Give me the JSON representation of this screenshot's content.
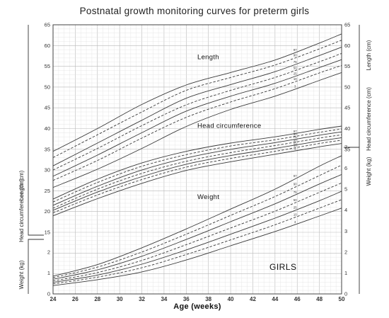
{
  "chart_data": {
    "type": "line",
    "title": "Postnatal growth monitoring curves for preterm girls",
    "xlabel": "Age (weeks)",
    "watermark_label": "GIRLS",
    "x_ticks": [
      24,
      26,
      28,
      30,
      32,
      34,
      36,
      38,
      40,
      42,
      44,
      46,
      48,
      50
    ],
    "xlim": [
      24,
      50
    ],
    "grid": true,
    "axes": {
      "length": {
        "label": "Length (cm)",
        "ylim": [
          15,
          65
        ],
        "ticks": [
          15,
          20,
          25,
          30,
          35,
          40,
          45,
          50,
          55,
          60,
          65
        ]
      },
      "head": {
        "label": "Head circumference (cm)",
        "ylim": [
          15,
          40
        ],
        "ticks": [
          15,
          20,
          25,
          30,
          35,
          40
        ]
      },
      "weight": {
        "label": "Weight (kg)",
        "ylim": [
          0,
          7
        ],
        "ticks_left": [
          0,
          1,
          2
        ],
        "ticks_right": [
          0,
          1,
          2,
          3,
          4,
          5,
          6,
          7
        ]
      }
    },
    "percentile_labels": [
      "97",
      "90",
      "75",
      "50",
      "25",
      "10",
      "3"
    ],
    "panels": [
      {
        "name": "Length",
        "axis": "length",
        "x": [
          24,
          28,
          32,
          36,
          40,
          44,
          48,
          50
        ],
        "series": [
          {
            "name": "97",
            "values": [
              34.5,
              40.0,
              45.8,
              50.5,
              53.5,
              56.5,
              60.6,
              62.8
            ]
          },
          {
            "name": "90",
            "values": [
              33.0,
              38.5,
              44.0,
              49.2,
              52.3,
              55.3,
              59.2,
              61.3
            ]
          },
          {
            "name": "75",
            "values": [
              31.0,
              36.5,
              42.0,
              47.3,
              50.6,
              53.7,
              57.6,
              59.6
            ]
          },
          {
            "name": "50",
            "values": [
              30.0,
              35.2,
              40.7,
              45.7,
              49.2,
              52.3,
              56.1,
              58.1
            ]
          },
          {
            "name": "25",
            "values": [
              28.5,
              33.6,
              39.0,
              44.2,
              47.8,
              50.9,
              54.7,
              56.6
            ]
          },
          {
            "name": "10",
            "values": [
              27.5,
              32.3,
              37.7,
              42.7,
              46.4,
              49.6,
              53.4,
              55.2
            ]
          },
          {
            "name": "3",
            "values": [
              25.8,
              30.2,
              35.2,
              40.5,
              44.6,
              47.8,
              51.6,
              53.5
            ]
          }
        ]
      },
      {
        "name": "Head circumference",
        "axis": "head",
        "x": [
          24,
          28,
          32,
          36,
          40,
          44,
          48,
          50
        ],
        "series": [
          {
            "name": "97",
            "values": [
              23.0,
              27.8,
              31.7,
              34.5,
              36.5,
              38.0,
              39.8,
              40.6
            ]
          },
          {
            "name": "90",
            "values": [
              22.3,
              27.0,
              30.9,
              33.7,
              35.8,
              37.3,
              39.1,
              39.9
            ]
          },
          {
            "name": "75",
            "values": [
              21.5,
              26.1,
              30.0,
              32.9,
              35.0,
              36.6,
              38.4,
              39.2
            ]
          },
          {
            "name": "50",
            "values": [
              20.8,
              25.4,
              29.2,
              32.1,
              34.2,
              35.9,
              37.7,
              38.5
            ]
          },
          {
            "name": "25",
            "values": [
              20.3,
              24.7,
              28.4,
              31.4,
              33.5,
              35.2,
              37.0,
              37.8
            ]
          },
          {
            "name": "10",
            "values": [
              19.7,
              24.0,
              27.7,
              30.7,
              32.8,
              34.5,
              36.4,
              37.2
            ]
          },
          {
            "name": "3",
            "values": [
              19.0,
              23.1,
              26.8,
              29.9,
              32.0,
              33.8,
              35.6,
              36.4
            ]
          }
        ]
      },
      {
        "name": "Weight",
        "axis": "weight",
        "x": [
          24,
          28,
          32,
          36,
          40,
          44,
          48,
          50
        ],
        "series": [
          {
            "name": "97",
            "values": [
              0.85,
              1.4,
              2.2,
              3.1,
              4.05,
              5.0,
              6.1,
              6.6
            ]
          },
          {
            "name": "90",
            "values": [
              0.78,
              1.28,
              2.0,
              2.85,
              3.75,
              4.65,
              5.65,
              6.15
            ]
          },
          {
            "name": "75",
            "values": [
              0.7,
              1.15,
              1.8,
              2.6,
              3.45,
              4.3,
              5.25,
              5.7
            ]
          },
          {
            "name": "50",
            "values": [
              0.62,
              1.02,
              1.6,
              2.35,
              3.15,
              3.95,
              4.85,
              5.3
            ]
          },
          {
            "name": "25",
            "values": [
              0.55,
              0.9,
              1.42,
              2.1,
              2.85,
              3.62,
              4.45,
              4.9
            ]
          },
          {
            "name": "10",
            "values": [
              0.48,
              0.8,
              1.25,
              1.88,
              2.58,
              3.3,
              4.1,
              4.5
            ]
          },
          {
            "name": "3",
            "values": [
              0.4,
              0.68,
              1.05,
              1.62,
              2.3,
              2.98,
              3.72,
              4.1
            ]
          }
        ]
      }
    ]
  }
}
